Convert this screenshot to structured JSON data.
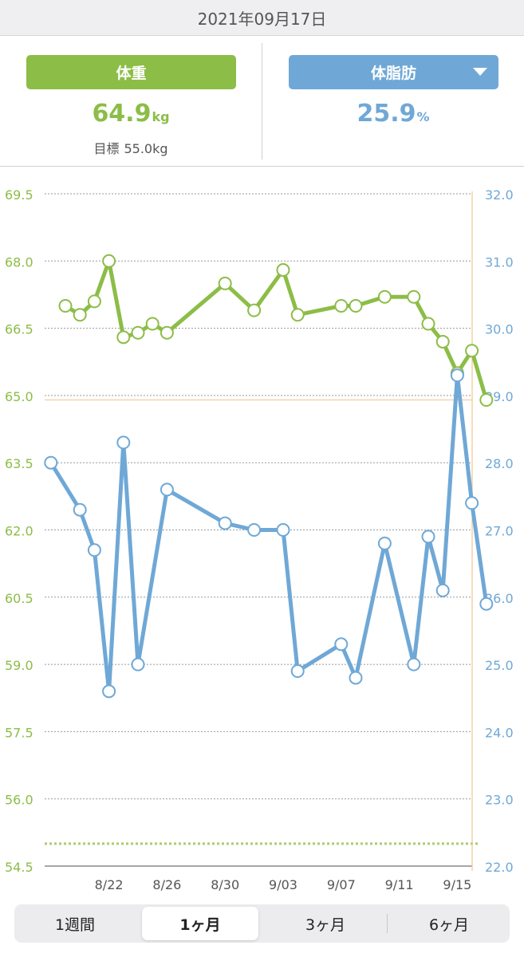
{
  "header": {
    "date": "2021年09月17日"
  },
  "weight_panel": {
    "label": "体重",
    "value": "64.9",
    "unit": "kg",
    "goal_label": "目標",
    "goal_value": "55.0kg",
    "color": "#8cbd47"
  },
  "fat_panel": {
    "label": "体脂肪",
    "value": "25.9",
    "unit": "%",
    "color": "#6fa8d6",
    "dropdown_icon": "caret-down-icon"
  },
  "chart_data": {
    "type": "line",
    "x_tick_labels": [
      "8/22",
      "8/26",
      "8/30",
      "9/03",
      "9/07",
      "9/11",
      "9/15"
    ],
    "left_axis": {
      "ticks": [
        "69.5",
        "68.0",
        "66.5",
        "65.0",
        "63.5",
        "62.0",
        "60.5",
        "59.0",
        "57.5",
        "56.0",
        "54.5"
      ],
      "range": [
        54.5,
        69.5
      ],
      "color": "#8cbd47"
    },
    "right_axis": {
      "ticks": [
        "32.0",
        "31.0",
        "30.0",
        "29.0",
        "28.0",
        "27.0",
        "26.0",
        "25.0",
        "24.0",
        "23.0",
        "22.0"
      ],
      "range": [
        22.0,
        32.0
      ],
      "color": "#6fa8d6"
    },
    "x_range": [
      "8/19",
      "9/18"
    ],
    "goal_line": 55.0,
    "current_value_line": 64.9,
    "series": [
      {
        "axis": "left",
        "color": "#8cbd47",
        "points": [
          [
            "8/19",
            67.0
          ],
          [
            "8/20",
            66.8
          ],
          [
            "8/21",
            67.1
          ],
          [
            "8/22",
            68.0
          ],
          [
            "8/23",
            66.3
          ],
          [
            "8/24",
            66.4
          ],
          [
            "8/25",
            66.6
          ],
          [
            "8/26",
            66.4
          ],
          [
            "8/30",
            67.5
          ],
          [
            "9/01",
            66.9
          ],
          [
            "9/03",
            67.8
          ],
          [
            "9/04",
            66.8
          ],
          [
            "9/07",
            67.0
          ],
          [
            "9/08",
            67.0
          ],
          [
            "9/10",
            67.2
          ],
          [
            "9/12",
            67.2
          ],
          [
            "9/13",
            66.6
          ],
          [
            "9/14",
            66.2
          ],
          [
            "9/15",
            65.5
          ],
          [
            "9/16",
            66.0
          ],
          [
            "9/17",
            64.9
          ]
        ]
      },
      {
        "axis": "right",
        "color": "#6fa8d6",
        "points": [
          [
            "8/18",
            28.0
          ],
          [
            "8/20",
            27.3
          ],
          [
            "8/21",
            26.7
          ],
          [
            "8/22",
            24.6
          ],
          [
            "8/23",
            28.3
          ],
          [
            "8/24",
            25.0
          ],
          [
            "8/26",
            27.6
          ],
          [
            "8/30",
            27.1
          ],
          [
            "9/01",
            27.0
          ],
          [
            "9/03",
            27.0
          ],
          [
            "9/04",
            24.9
          ],
          [
            "9/07",
            25.3
          ],
          [
            "9/08",
            24.8
          ],
          [
            "9/10",
            26.8
          ],
          [
            "9/12",
            25.0
          ],
          [
            "9/13",
            26.9
          ],
          [
            "9/14",
            26.1
          ],
          [
            "9/15",
            29.3
          ],
          [
            "9/16",
            27.4
          ],
          [
            "9/17",
            25.9
          ]
        ]
      }
    ],
    "grid": true
  },
  "tabs": [
    {
      "label": "1週間",
      "active": false
    },
    {
      "label": "1ヶ月",
      "active": true
    },
    {
      "label": "3ヶ月",
      "active": false
    },
    {
      "label": "6ヶ月",
      "active": false
    }
  ]
}
